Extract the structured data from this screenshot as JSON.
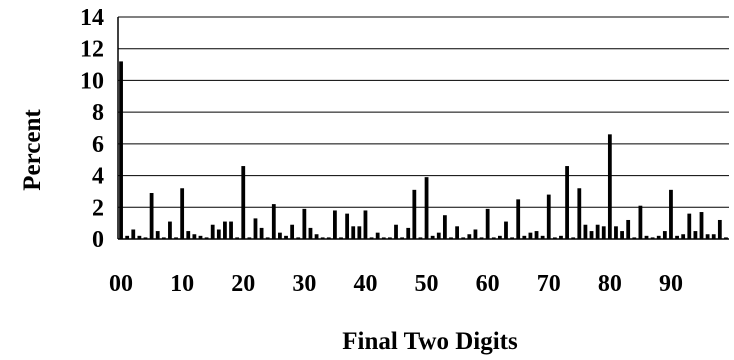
{
  "chart_data": {
    "type": "bar",
    "xlabel": "Final Two Digits",
    "ylabel": "Percent",
    "ylim": [
      0,
      14
    ],
    "yticks": [
      "0",
      "2",
      "4",
      "6",
      "8",
      "10",
      "12",
      "14"
    ],
    "xticks": [
      {
        "pos": 0,
        "label": "00"
      },
      {
        "pos": 10,
        "label": "10"
      },
      {
        "pos": 20,
        "label": "20"
      },
      {
        "pos": 30,
        "label": "30"
      },
      {
        "pos": 40,
        "label": "40"
      },
      {
        "pos": 50,
        "label": "50"
      },
      {
        "pos": 60,
        "label": "60"
      },
      {
        "pos": 70,
        "label": "70"
      },
      {
        "pos": 80,
        "label": "80"
      },
      {
        "pos": 90,
        "label": "90"
      }
    ],
    "grid": "horizontal",
    "categories": [
      "00",
      "01",
      "02",
      "03",
      "04",
      "05",
      "06",
      "07",
      "08",
      "09",
      "10",
      "11",
      "12",
      "13",
      "14",
      "15",
      "16",
      "17",
      "18",
      "19",
      "20",
      "21",
      "22",
      "23",
      "24",
      "25",
      "26",
      "27",
      "28",
      "29",
      "30",
      "31",
      "32",
      "33",
      "34",
      "35",
      "36",
      "37",
      "38",
      "39",
      "40",
      "41",
      "42",
      "43",
      "44",
      "45",
      "46",
      "47",
      "48",
      "49",
      "50",
      "51",
      "52",
      "53",
      "54",
      "55",
      "56",
      "57",
      "58",
      "59",
      "60",
      "61",
      "62",
      "63",
      "64",
      "65",
      "66",
      "67",
      "68",
      "69",
      "70",
      "71",
      "72",
      "73",
      "74",
      "75",
      "76",
      "77",
      "78",
      "79",
      "80",
      "81",
      "82",
      "83",
      "84",
      "85",
      "86",
      "87",
      "88",
      "89",
      "90",
      "91",
      "92",
      "93",
      "94",
      "95",
      "96",
      "97",
      "98",
      "99"
    ],
    "values": [
      11.2,
      0.2,
      0.6,
      0.2,
      0.1,
      2.9,
      0.5,
      0.1,
      1.1,
      0.1,
      3.2,
      0.5,
      0.3,
      0.2,
      0.1,
      0.9,
      0.6,
      1.1,
      1.1,
      0.1,
      4.6,
      0.1,
      1.3,
      0.7,
      0.1,
      2.2,
      0.4,
      0.2,
      0.9,
      0.1,
      1.9,
      0.7,
      0.3,
      0.1,
      0.1,
      1.8,
      0.1,
      1.6,
      0.8,
      0.8,
      1.8,
      0.1,
      0.4,
      0.1,
      0.1,
      0.9,
      0.1,
      0.7,
      3.1,
      0.1,
      3.9,
      0.2,
      0.4,
      1.5,
      0.1,
      0.8,
      0.1,
      0.3,
      0.6,
      0.1,
      1.9,
      0.1,
      0.2,
      1.1,
      0.1,
      2.5,
      0.2,
      0.4,
      0.5,
      0.2,
      2.8,
      0.1,
      0.2,
      4.6,
      0.1,
      3.2,
      0.9,
      0.5,
      0.9,
      0.8,
      6.6,
      0.8,
      0.5,
      1.2,
      0.1,
      2.1,
      0.2,
      0.1,
      0.2,
      0.5,
      3.1,
      0.2,
      0.3,
      1.6,
      0.5,
      1.7,
      0.3,
      0.3,
      1.2,
      0.1
    ]
  }
}
